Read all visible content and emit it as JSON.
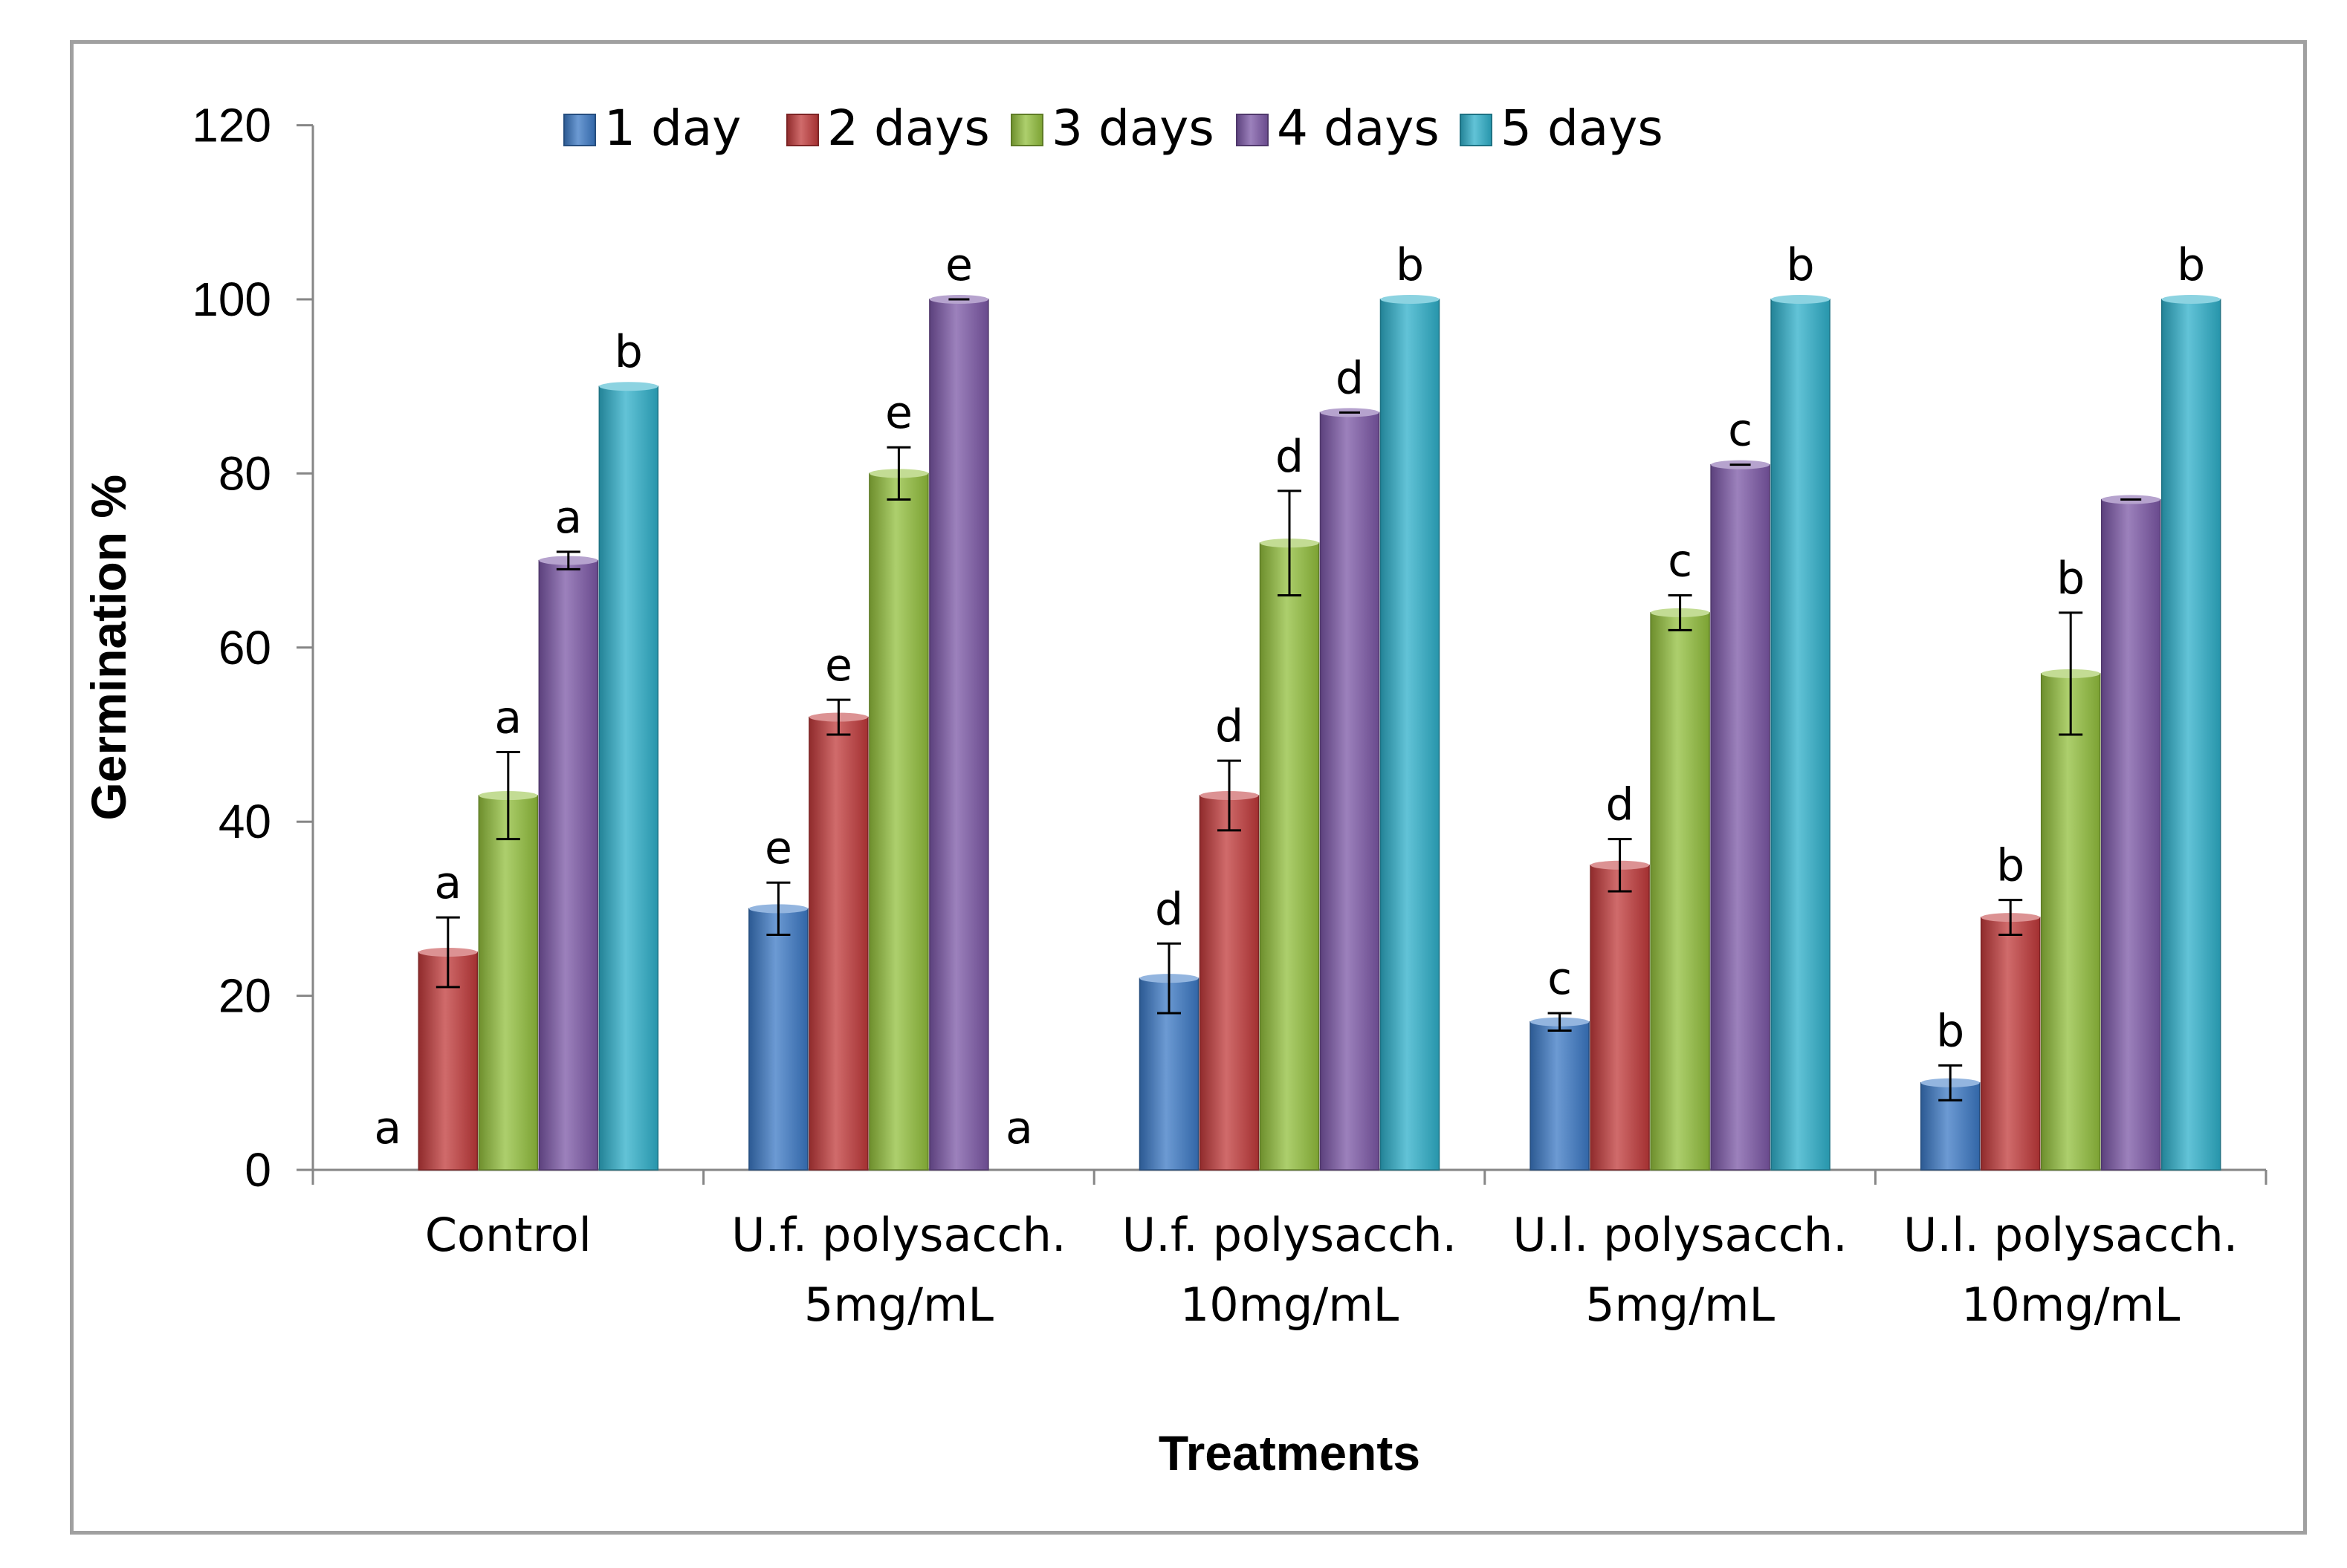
{
  "chart_data": {
    "type": "bar",
    "xlabel": "Treatments",
    "ylabel": "Germination %",
    "ylim": [
      0,
      120
    ],
    "yticks": [
      0,
      20,
      40,
      60,
      80,
      100,
      120
    ],
    "grid": false,
    "legend_position": "top",
    "categories": [
      [
        "Control"
      ],
      [
        "U.f. polysacch.",
        "5mg/mL"
      ],
      [
        "U.f. polysacch.",
        "10mg/mL"
      ],
      [
        "U.l. polysacch.",
        "5mg/mL"
      ],
      [
        "U.l. polysacch.",
        "10mg/mL"
      ]
    ],
    "series": [
      {
        "name": "1 day",
        "color": "#3b78c4",
        "values": [
          0,
          30,
          22,
          17,
          10
        ],
        "errors": [
          0,
          3,
          4,
          1,
          2
        ],
        "letters": [
          "a",
          "e",
          "d",
          "c",
          "b"
        ]
      },
      {
        "name": "2 days",
        "color": "#c0393a",
        "values": [
          25,
          52,
          43,
          35,
          29
        ],
        "errors": [
          4,
          2,
          4,
          3,
          2
        ],
        "letters": [
          "a",
          "e",
          "d",
          "d",
          "b"
        ]
      },
      {
        "name": "3 days",
        "color": "#92bf3c",
        "values": [
          43,
          80,
          72,
          64,
          57
        ],
        "errors": [
          5,
          3,
          6,
          2,
          7
        ],
        "letters": [
          "a",
          "e",
          "d",
          "c",
          "b"
        ]
      },
      {
        "name": "4 days",
        "color": "#7b57a6",
        "values": [
          70,
          100,
          87,
          81,
          77
        ],
        "errors": [
          1,
          0,
          0,
          0,
          0
        ],
        "letters": [
          "a",
          "e",
          "d",
          "c",
          ""
        ]
      },
      {
        "name": "5 days",
        "color": "#2eafc9",
        "values": [
          90,
          0,
          100,
          100,
          100
        ],
        "errors": [
          0,
          0,
          0,
          0,
          0
        ],
        "letters": [
          "b",
          "a",
          "b",
          "b",
          "b"
        ]
      }
    ]
  }
}
